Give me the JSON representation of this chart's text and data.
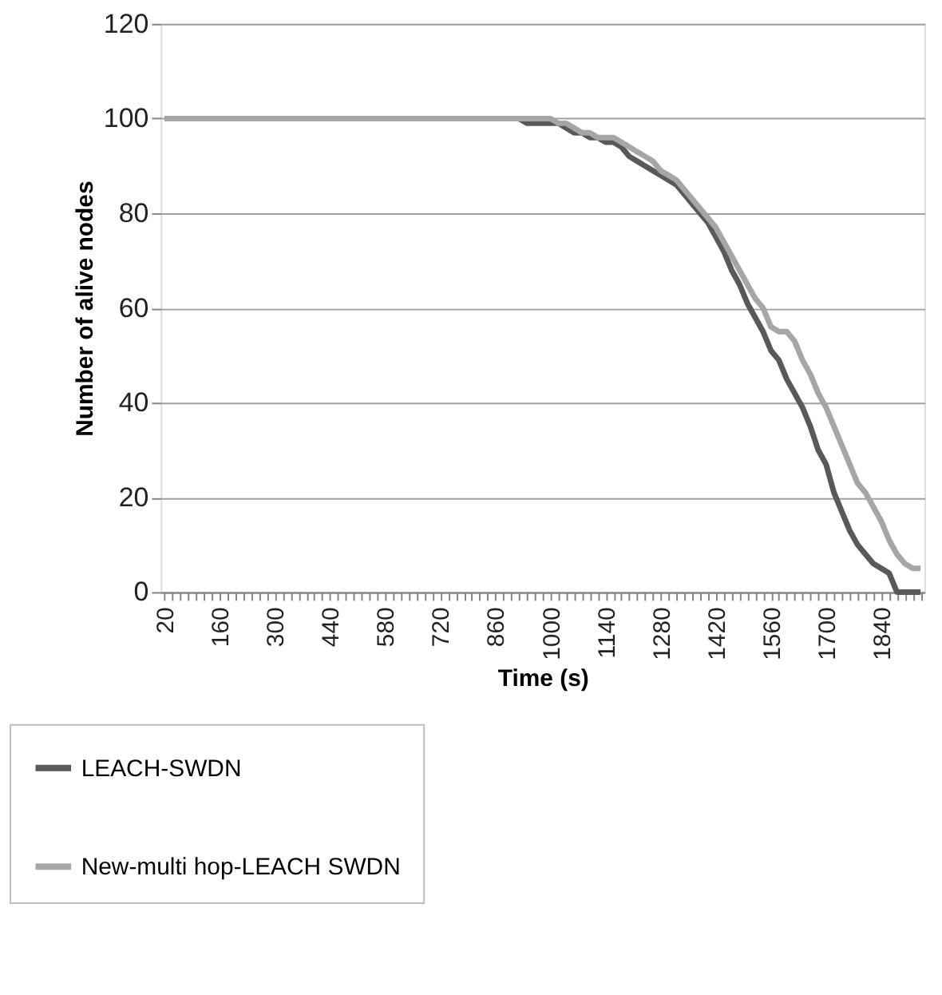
{
  "chart_data": {
    "type": "line",
    "xlabel": "Time (s)",
    "ylabel": "Number of alive nodes",
    "categories": [
      "20",
      null,
      null,
      null,
      null,
      null,
      null,
      "160",
      null,
      null,
      null,
      null,
      null,
      null,
      "300",
      null,
      null,
      null,
      null,
      null,
      null,
      "440",
      null,
      null,
      null,
      null,
      null,
      null,
      "580",
      null,
      null,
      null,
      null,
      null,
      null,
      "720",
      null,
      null,
      null,
      null,
      null,
      null,
      "860",
      null,
      null,
      null,
      null,
      null,
      null,
      "1000",
      null,
      null,
      null,
      null,
      null,
      null,
      "1140",
      null,
      null,
      null,
      null,
      null,
      null,
      "1280",
      null,
      null,
      null,
      null,
      null,
      null,
      "1420",
      null,
      null,
      null,
      null,
      null,
      null,
      "1560",
      null,
      null,
      null,
      null,
      null,
      null,
      "1700",
      null,
      null,
      null,
      null,
      null,
      null,
      "1840",
      null,
      null,
      null,
      null,
      null
    ],
    "series": [
      {
        "name": "LEACH-SWDN",
        "color": "#595959",
        "values": [
          100,
          100,
          100,
          100,
          100,
          100,
          100,
          100,
          100,
          100,
          100,
          100,
          100,
          100,
          100,
          100,
          100,
          100,
          100,
          100,
          100,
          100,
          100,
          100,
          100,
          100,
          100,
          100,
          100,
          100,
          100,
          100,
          100,
          100,
          100,
          100,
          100,
          100,
          100,
          100,
          100,
          100,
          100,
          100,
          100,
          100,
          99,
          99,
          99,
          99,
          99,
          98,
          97,
          97,
          96,
          96,
          95,
          95,
          94,
          92,
          91,
          90,
          89,
          88,
          87,
          86,
          84,
          82,
          80,
          78,
          75,
          72,
          68,
          65,
          61,
          58,
          55,
          51,
          49,
          45,
          42,
          39,
          35,
          30,
          27,
          21,
          17,
          13,
          10,
          8,
          6,
          5,
          4,
          0,
          0,
          0,
          0
        ]
      },
      {
        "name": "New-multi hop-LEACH SWDN",
        "color": "#a6a6a6",
        "values": [
          100,
          100,
          100,
          100,
          100,
          100,
          100,
          100,
          100,
          100,
          100,
          100,
          100,
          100,
          100,
          100,
          100,
          100,
          100,
          100,
          100,
          100,
          100,
          100,
          100,
          100,
          100,
          100,
          100,
          100,
          100,
          100,
          100,
          100,
          100,
          100,
          100,
          100,
          100,
          100,
          100,
          100,
          100,
          100,
          100,
          100,
          100,
          100,
          100,
          100,
          99,
          99,
          98,
          97,
          97,
          96,
          96,
          96,
          95,
          94,
          93,
          92,
          91,
          89,
          88,
          87,
          85,
          83,
          81,
          79,
          77,
          74,
          71,
          68,
          65,
          62,
          60,
          56,
          55,
          55,
          53,
          49,
          46,
          42,
          39,
          35,
          31,
          27,
          23,
          21,
          18,
          15,
          11,
          8,
          6,
          5,
          5
        ]
      }
    ],
    "ylim": [
      0,
      120
    ],
    "yticks": [
      0,
      20,
      40,
      60,
      80,
      100,
      120
    ],
    "grid": "y",
    "legend": "bottom left"
  }
}
